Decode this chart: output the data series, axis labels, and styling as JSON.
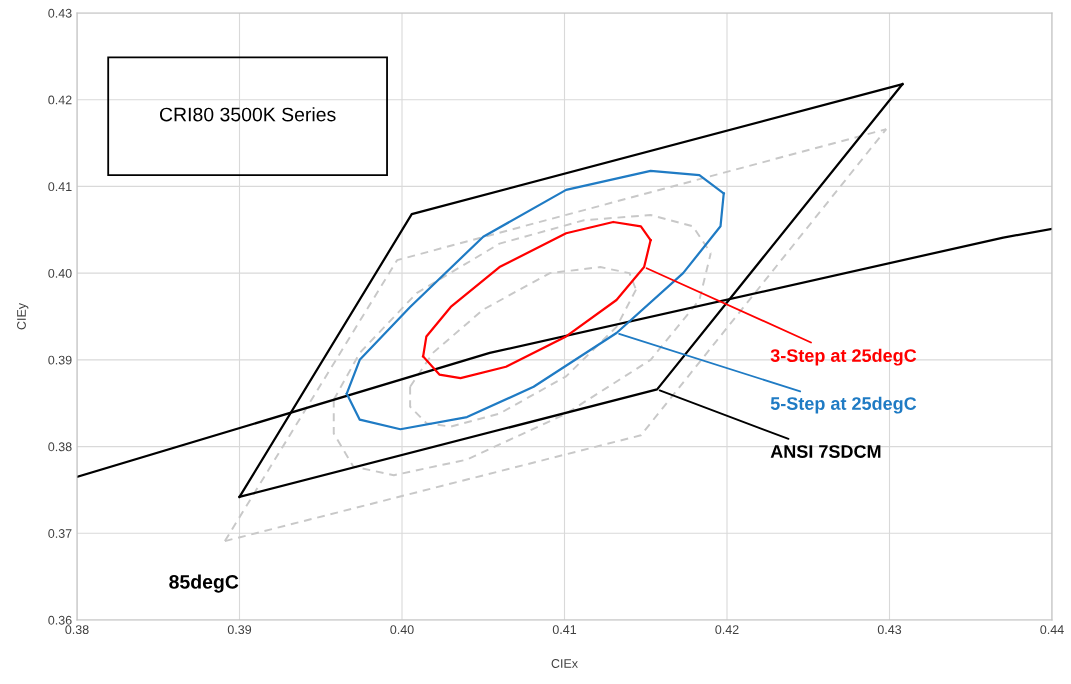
{
  "chart_data": {
    "type": "line",
    "xlabel": "CIEx",
    "ylabel": "CIEy",
    "xlim": [
      0.38,
      0.44
    ],
    "ylim": [
      0.36,
      0.43
    ],
    "xticks": [
      0.38,
      0.39,
      {
        "value": 0.4,
        "label": "0.40"
      },
      0.41,
      0.42,
      0.43,
      0.44
    ],
    "yticks": [
      0.36,
      0.37,
      0.38,
      0.39,
      {
        "value": 0.4,
        "label": "0.40"
      },
      0.41,
      0.42,
      0.43
    ],
    "grid": true,
    "legend": false,
    "marker": "none",
    "series": [
      {
        "color": "#c8c8c8",
        "line_style": "dashed",
        "x": [
          0.3891,
          0.3997,
          0.4298
        ],
        "values": [
          0.3691,
          0.4015,
          0.4166
        ]
      },
      {
        "color": "#c8c8c8",
        "line_style": "dashed",
        "x": [
          0.3891,
          0.4147,
          0.4298
        ],
        "values": [
          0.3691,
          0.3813,
          0.4166
        ]
      },
      {
        "color": "#c8c8c8",
        "line_style": "dashed",
        "x": [
          0.3958,
          0.3958,
          0.397,
          0.3995,
          0.404,
          0.4101,
          0.4153,
          0.4183,
          0.419
        ],
        "values": [
          0.3854,
          0.3815,
          0.3777,
          0.3767,
          0.3785,
          0.3838,
          0.39,
          0.3969,
          0.4023
        ]
      },
      {
        "color": "#c8c8c8",
        "line_style": "dashed",
        "x": [
          0.3958,
          0.3974,
          0.4009,
          0.406,
          0.4112,
          0.4153,
          0.4179,
          0.419
        ],
        "values": [
          0.3854,
          0.3908,
          0.3977,
          0.4034,
          0.4061,
          0.4067,
          0.4054,
          0.4023
        ]
      },
      {
        "color": "#c8c8c8",
        "line_style": "dashed",
        "x": [
          0.4005,
          0.4005,
          0.4015,
          0.403,
          0.406,
          0.4101,
          0.4132,
          0.4144
        ],
        "values": [
          0.3869,
          0.3846,
          0.3827,
          0.3823,
          0.3838,
          0.3881,
          0.3938,
          0.3981
        ]
      },
      {
        "color": "#c8c8c8",
        "line_style": "dashed",
        "x": [
          0.4005,
          0.4019,
          0.405,
          0.4091,
          0.4122,
          0.414,
          0.4144
        ],
        "values": [
          0.3869,
          0.3908,
          0.3958,
          0.4,
          0.4007,
          0.4,
          0.3981
        ]
      },
      {
        "color": "#000000",
        "line_style": "solid",
        "x": [
          0.38,
          0.4054,
          0.437,
          0.44
        ],
        "values": [
          0.3765,
          0.3908,
          0.4041,
          0.4051
        ]
      },
      {
        "color": "#000000",
        "line_style": "solid",
        "x": [
          0.39,
          0.4006,
          0.4308
        ],
        "values": [
          0.3742,
          0.4068,
          0.4218
        ]
      },
      {
        "name": "ANSI 7SDCM",
        "color": "#000000",
        "line_style": "solid",
        "x": [
          0.39,
          0.4157,
          0.4308
        ],
        "values": [
          0.3742,
          0.3866,
          0.4218
        ]
      },
      {
        "color": "#1f7bc4",
        "line_style": "solid",
        "x": [
          0.3966,
          0.3974,
          0.4005,
          0.405,
          0.4101,
          0.4153,
          0.4183,
          0.4198
        ],
        "values": [
          0.3861,
          0.39,
          0.3961,
          0.4042,
          0.4096,
          0.4118,
          0.4113,
          0.4092
        ]
      },
      {
        "name": "5-Step at 25degC",
        "color": "#1f7bc4",
        "line_style": "solid",
        "x": [
          0.3966,
          0.3974,
          0.3999,
          0.404,
          0.4081,
          0.4132,
          0.4173,
          0.4196,
          0.4198
        ],
        "values": [
          0.3861,
          0.3831,
          0.382,
          0.3834,
          0.3869,
          0.3931,
          0.4,
          0.4054,
          0.4092
        ]
      },
      {
        "color": "#ff0000",
        "line_style": "solid",
        "x": [
          0.4013,
          0.4015,
          0.403,
          0.406,
          0.4101,
          0.413,
          0.4147,
          0.4153
        ],
        "values": [
          0.3904,
          0.3927,
          0.3961,
          0.4007,
          0.4046,
          0.4059,
          0.4054,
          0.4038
        ]
      },
      {
        "name": "3-Step at 25degC",
        "color": "#ff0000",
        "line_style": "solid",
        "x": [
          0.4013,
          0.4023,
          0.4036,
          0.4064,
          0.4101,
          0.4132,
          0.4149,
          0.4153
        ],
        "values": [
          0.3904,
          0.3883,
          0.3879,
          0.3892,
          0.3927,
          0.3969,
          0.4007,
          0.4038
        ]
      }
    ],
    "annotations": [
      "CRI80 3500K Series",
      "85degC"
    ]
  }
}
